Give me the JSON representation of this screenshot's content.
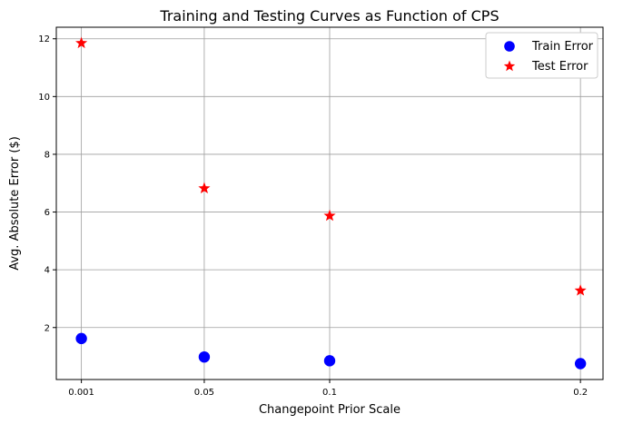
{
  "chart_data": {
    "type": "scatter",
    "title": "Training and Testing Curves as Function of CPS",
    "xlabel": "Changepoint Prior Scale",
    "ylabel": "Avg. Absolute Error ($)",
    "x": [
      0.001,
      0.05,
      0.1,
      0.2
    ],
    "x_tick_labels": [
      "0.001",
      "0.05",
      "0.1",
      "0.2"
    ],
    "y_ticks": [
      2,
      4,
      6,
      8,
      10,
      12
    ],
    "y_tick_labels": [
      "2",
      "4",
      "6",
      "8",
      "10",
      "12"
    ],
    "xlim": [
      -0.009,
      0.209
    ],
    "ylim": [
      0.2,
      12.4
    ],
    "grid": true,
    "legend_position": "top-right",
    "series": [
      {
        "name": "Train Error",
        "marker": "circle",
        "color": "#0000ff",
        "values": [
          1.62,
          0.98,
          0.85,
          0.75
        ]
      },
      {
        "name": "Test Error",
        "marker": "star",
        "color": "#ff0000",
        "values": [
          11.85,
          6.82,
          5.87,
          3.28
        ]
      }
    ]
  }
}
